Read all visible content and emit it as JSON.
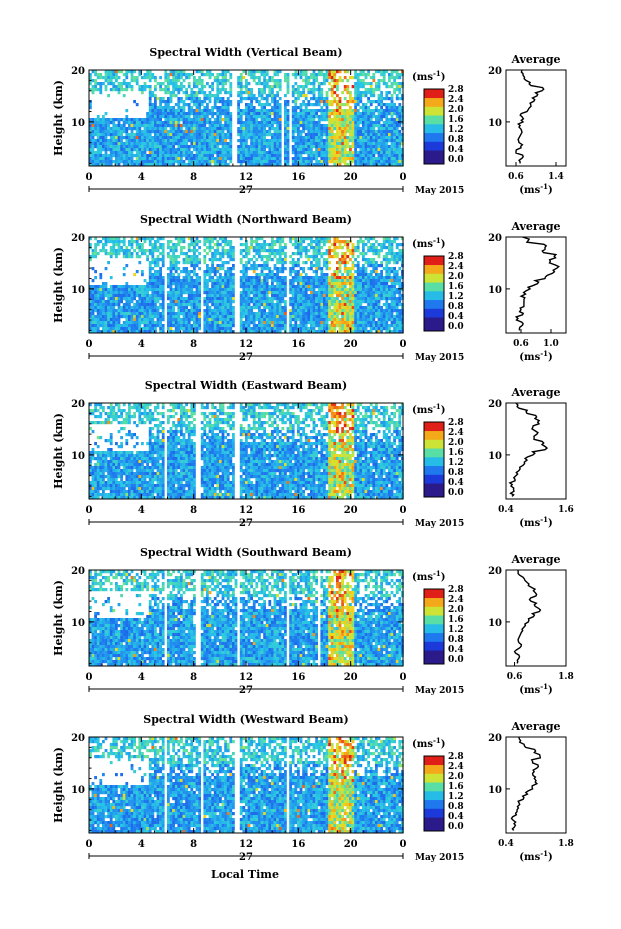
{
  "figure": {
    "x_axis_title": "Local Time",
    "date_label": "May 2015",
    "day_label": "27",
    "colorbar_unit": "(ms",
    "colorbar_unit_exp": "-1",
    "colorbar_unit_close": ")",
    "average_title": "Average",
    "average_unit": "(ms",
    "average_unit_exp": "-1",
    "average_unit_close": ")",
    "height_label": "Height (km)"
  },
  "chart_data": [
    {
      "type": "heatmap",
      "title": "Spectral Width (Vertical Beam)",
      "xlabel": "Local Time",
      "ylabel": "Height (km)",
      "x_range": [
        0,
        24
      ],
      "x_ticks": [
        "0",
        "4",
        "8",
        "12",
        "16",
        "20",
        "0"
      ],
      "y_range": [
        1.5,
        20
      ],
      "y_ticks": [
        "10",
        "20"
      ],
      "colorbar": {
        "range": [
          0.0,
          2.8
        ],
        "ticks": [
          "0.0",
          "0.4",
          "0.8",
          "1.2",
          "1.6",
          "2.0",
          "2.4",
          "2.8"
        ],
        "unit": "ms-1"
      },
      "data_gaps_hours": [
        [
          10.8,
          11.3
        ],
        [
          14.6,
          14.8
        ],
        [
          15.3,
          15.5
        ]
      ],
      "average_profile": {
        "xlabel": "(ms-1)",
        "x_range": [
          0.4,
          1.6
        ],
        "x_ticks": [
          "0.6",
          "1.4"
        ],
        "y_ticks": [
          "10",
          "20"
        ],
        "points": [
          [
            0.68,
            2
          ],
          [
            0.72,
            3
          ],
          [
            0.6,
            4
          ],
          [
            0.7,
            5
          ],
          [
            0.66,
            6
          ],
          [
            0.72,
            8
          ],
          [
            0.66,
            9
          ],
          [
            0.74,
            10
          ],
          [
            0.72,
            11
          ],
          [
            0.82,
            12
          ],
          [
            0.9,
            13
          ],
          [
            0.96,
            14
          ],
          [
            1.02,
            15
          ],
          [
            1.12,
            16
          ],
          [
            0.9,
            17
          ],
          [
            0.8,
            18
          ],
          [
            0.74,
            19
          ],
          [
            0.72,
            20
          ]
        ]
      }
    },
    {
      "type": "heatmap",
      "title": "Spectral Width (Northward Beam)",
      "xlabel": "Local Time",
      "ylabel": "Height (km)",
      "x_range": [
        0,
        24
      ],
      "x_ticks": [
        "0",
        "4",
        "8",
        "12",
        "16",
        "20",
        "0"
      ],
      "y_range": [
        1.5,
        20
      ],
      "y_ticks": [
        "10",
        "20"
      ],
      "colorbar": {
        "range": [
          0.0,
          2.8
        ],
        "ticks": [
          "0.0",
          "0.4",
          "0.8",
          "1.2",
          "1.6",
          "2.0",
          "2.4",
          "2.8"
        ],
        "unit": "ms-1"
      },
      "data_gaps_hours": [
        [
          5.6,
          5.9
        ],
        [
          8.4,
          8.6
        ],
        [
          11.0,
          11.4
        ],
        [
          15.0,
          15.3
        ]
      ],
      "average_profile": {
        "xlabel": "(ms-1)",
        "x_range": [
          0.4,
          1.2
        ],
        "x_ticks": [
          "0.6",
          "1.0"
        ],
        "y_ticks": [
          "10",
          "20"
        ],
        "points": [
          [
            0.58,
            2
          ],
          [
            0.62,
            3
          ],
          [
            0.54,
            4
          ],
          [
            0.62,
            5
          ],
          [
            0.6,
            6
          ],
          [
            0.64,
            8
          ],
          [
            0.66,
            9
          ],
          [
            0.72,
            10
          ],
          [
            0.82,
            11
          ],
          [
            0.92,
            12
          ],
          [
            1.02,
            13
          ],
          [
            1.08,
            14
          ],
          [
            0.98,
            15
          ],
          [
            1.06,
            16
          ],
          [
            0.9,
            17
          ],
          [
            0.92,
            18
          ],
          [
            0.68,
            19
          ],
          [
            0.62,
            20
          ]
        ]
      }
    },
    {
      "type": "heatmap",
      "title": "Spectral Width (Eastward Beam)",
      "xlabel": "Local Time",
      "ylabel": "Height (km)",
      "x_range": [
        0,
        24
      ],
      "x_ticks": [
        "0",
        "4",
        "8",
        "12",
        "16",
        "20",
        "0"
      ],
      "y_range": [
        1.5,
        20
      ],
      "y_ticks": [
        "10",
        "20"
      ],
      "colorbar": {
        "range": [
          0.0,
          2.8
        ],
        "ticks": [
          "0.0",
          "0.4",
          "0.8",
          "1.2",
          "1.6",
          "2.0",
          "2.4",
          "2.8"
        ],
        "unit": "ms-1"
      },
      "data_gaps_hours": [
        [
          5.6,
          5.9
        ],
        [
          8.1,
          8.4
        ],
        [
          11.1,
          11.4
        ]
      ],
      "average_profile": {
        "xlabel": "(ms-1)",
        "x_range": [
          0.4,
          1.6
        ],
        "x_ticks": [
          "0.4",
          "1.6"
        ],
        "y_ticks": [
          "10",
          "20"
        ],
        "points": [
          [
            0.52,
            2
          ],
          [
            0.56,
            3
          ],
          [
            0.5,
            4
          ],
          [
            0.58,
            5
          ],
          [
            0.6,
            6
          ],
          [
            0.66,
            7
          ],
          [
            0.74,
            8
          ],
          [
            0.82,
            9
          ],
          [
            0.94,
            10
          ],
          [
            1.18,
            11
          ],
          [
            1.12,
            12
          ],
          [
            0.96,
            13
          ],
          [
            1.02,
            14
          ],
          [
            0.92,
            15
          ],
          [
            1.06,
            16
          ],
          [
            0.98,
            17
          ],
          [
            0.82,
            18
          ],
          [
            0.66,
            19
          ],
          [
            0.6,
            20
          ]
        ]
      }
    },
    {
      "type": "heatmap",
      "title": "Spectral Width (Southward Beam)",
      "xlabel": "Local Time",
      "ylabel": "Height (km)",
      "x_range": [
        0,
        24
      ],
      "x_ticks": [
        "0",
        "4",
        "8",
        "12",
        "16",
        "20",
        "0"
      ],
      "y_range": [
        1.5,
        20
      ],
      "y_ticks": [
        "10",
        "20"
      ],
      "colorbar": {
        "range": [
          0.0,
          2.8
        ],
        "ticks": [
          "0.0",
          "0.4",
          "0.8",
          "1.2",
          "1.6",
          "2.0",
          "2.4",
          "2.8"
        ],
        "unit": "ms-1"
      },
      "data_gaps_hours": [
        [
          5.6,
          5.9
        ],
        [
          8.1,
          8.4
        ],
        [
          11.2,
          11.4
        ],
        [
          15.0,
          15.3
        ],
        [
          17.3,
          17.6
        ]
      ],
      "average_profile": {
        "xlabel": "(ms-1)",
        "x_range": [
          0.4,
          1.8
        ],
        "x_ticks": [
          "0.6",
          "1.8"
        ],
        "y_ticks": [
          "10",
          "20"
        ],
        "points": [
          [
            0.66,
            2
          ],
          [
            0.7,
            3
          ],
          [
            0.62,
            4
          ],
          [
            0.72,
            5
          ],
          [
            0.7,
            6
          ],
          [
            0.76,
            8
          ],
          [
            0.82,
            9
          ],
          [
            0.92,
            10
          ],
          [
            1.04,
            11
          ],
          [
            1.18,
            12
          ],
          [
            1.08,
            13
          ],
          [
            0.98,
            14
          ],
          [
            1.1,
            15
          ],
          [
            1.04,
            16
          ],
          [
            0.92,
            17
          ],
          [
            0.84,
            18
          ],
          [
            0.72,
            19
          ],
          [
            0.68,
            20
          ]
        ]
      }
    },
    {
      "type": "heatmap",
      "title": "Spectral Width (Westward Beam)",
      "xlabel": "Local Time",
      "ylabel": "Height (km)",
      "x_range": [
        0,
        24
      ],
      "x_ticks": [
        "0",
        "4",
        "8",
        "12",
        "16",
        "20",
        "0"
      ],
      "y_range": [
        1.5,
        20
      ],
      "y_ticks": [
        "10",
        "20"
      ],
      "colorbar": {
        "range": [
          0.0,
          2.8
        ],
        "ticks": [
          "0.0",
          "0.4",
          "0.8",
          "1.2",
          "1.6",
          "2.0",
          "2.4",
          "2.8"
        ],
        "unit": "ms-1"
      },
      "data_gaps_hours": [
        [
          5.6,
          5.9
        ],
        [
          8.4,
          8.6
        ],
        [
          11.1,
          11.4
        ],
        [
          15.0,
          15.3
        ]
      ],
      "average_profile": {
        "xlabel": "(ms-1)",
        "x_range": [
          0.4,
          1.8
        ],
        "x_ticks": [
          "0.4",
          "1.8"
        ],
        "y_ticks": [
          "10",
          "20"
        ],
        "points": [
          [
            0.58,
            2
          ],
          [
            0.62,
            3
          ],
          [
            0.56,
            4
          ],
          [
            0.64,
            5
          ],
          [
            0.66,
            6
          ],
          [
            0.72,
            7
          ],
          [
            0.8,
            8
          ],
          [
            0.9,
            9
          ],
          [
            1.02,
            10
          ],
          [
            1.12,
            11
          ],
          [
            1.06,
            12
          ],
          [
            1.02,
            13
          ],
          [
            1.12,
            14
          ],
          [
            1.02,
            15
          ],
          [
            1.2,
            16
          ],
          [
            1.06,
            17
          ],
          [
            0.86,
            18
          ],
          [
            0.72,
            19
          ],
          [
            0.7,
            20
          ]
        ]
      }
    }
  ]
}
